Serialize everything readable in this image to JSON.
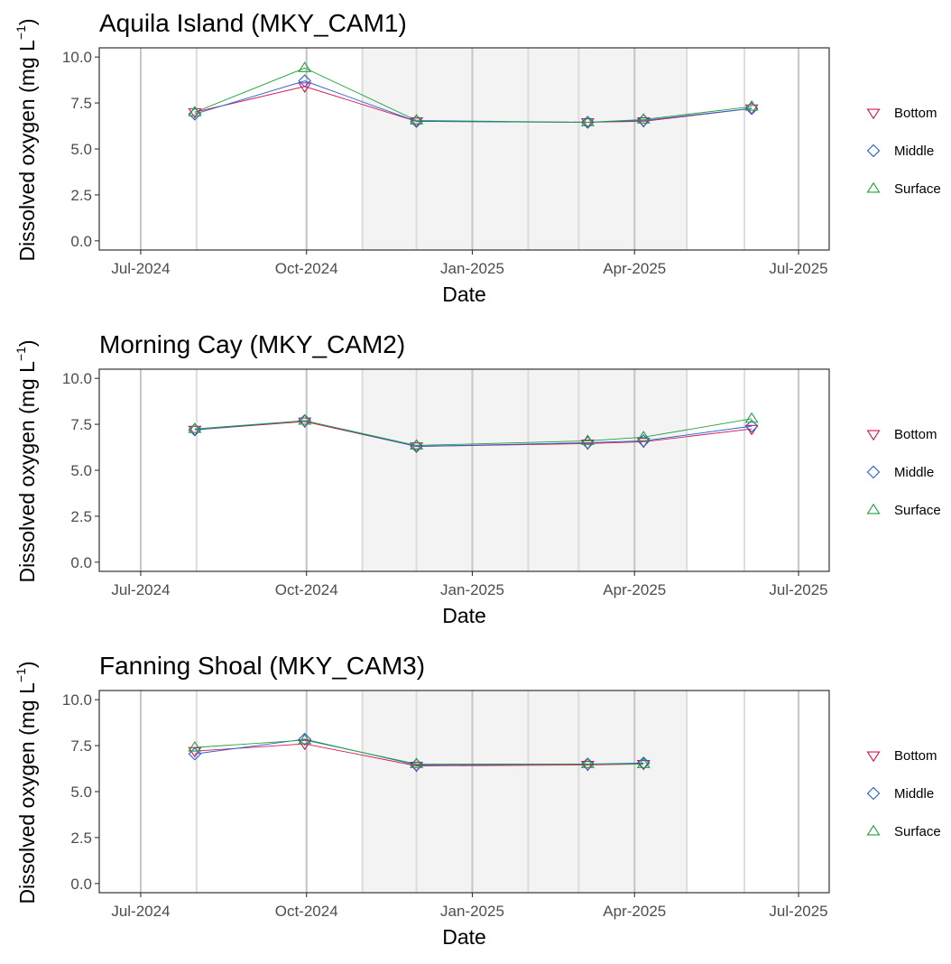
{
  "colors": {
    "Bottom": "#d6154f",
    "Middle": "#1f5fd6",
    "Surface": "#22a23a",
    "shade": "#f3f3f3",
    "vline": "#dcdcdc",
    "vline_major": "#c6c6c6"
  },
  "legend": {
    "items": [
      {
        "label": "Bottom",
        "marker": "triangle-down"
      },
      {
        "label": "Middle",
        "marker": "diamond"
      },
      {
        "label": "Surface",
        "marker": "triangle-up"
      }
    ]
  },
  "chart_data": [
    {
      "type": "line",
      "title": "Aquila Island (MKY_CAM1)",
      "xlabel": "Date",
      "ylabel_main": "Dissolved oxygen (mg L",
      "ylabel_sup": "−1",
      "ylabel_close": ")",
      "xlim": [
        "2024-06-08",
        "2025-07-18"
      ],
      "ylim": [
        -0.5,
        10.5
      ],
      "yticks": [
        "0.0",
        "2.5",
        "5.0",
        "7.5",
        "10.0"
      ],
      "ytick_values": [
        0,
        2.5,
        5,
        7.5,
        10
      ],
      "xticks": [
        {
          "label": "Jul-2024",
          "date": "2024-07-01"
        },
        {
          "label": "Oct-2024",
          "date": "2024-10-01"
        },
        {
          "label": "Jan-2025",
          "date": "2025-01-01"
        },
        {
          "label": "Apr-2025",
          "date": "2025-04-01"
        },
        {
          "label": "Jul-2025",
          "date": "2025-07-01"
        }
      ],
      "shaded_period": [
        "2024-11-01",
        "2025-04-30"
      ],
      "sampling_dates": [
        "2024-08-01",
        "2024-10-01",
        "2024-11-01",
        "2024-12-01",
        "2025-02-01",
        "2025-03-01",
        "2025-04-01",
        "2025-04-30",
        "2025-06-01"
      ],
      "x": [
        "2024-07-31",
        "2024-09-30",
        "2024-12-01",
        "2025-03-06",
        "2025-04-06",
        "2025-06-05"
      ],
      "series": [
        {
          "name": "Bottom",
          "values": [
            7.0,
            8.4,
            6.5,
            6.45,
            6.5,
            7.2
          ]
        },
        {
          "name": "Middle",
          "values": [
            6.9,
            8.7,
            6.5,
            6.45,
            6.55,
            7.2
          ]
        },
        {
          "name": "Surface",
          "values": [
            7.0,
            9.4,
            6.55,
            6.45,
            6.6,
            7.3
          ]
        }
      ]
    },
    {
      "type": "line",
      "title": "Morning Cay (MKY_CAM2)",
      "xlabel": "Date",
      "ylabel_main": "Dissolved oxygen (mg L",
      "ylabel_sup": "−1",
      "ylabel_close": ")",
      "xlim": [
        "2024-06-08",
        "2025-07-18"
      ],
      "ylim": [
        -0.5,
        10.5
      ],
      "yticks": [
        "0.0",
        "2.5",
        "5.0",
        "7.5",
        "10.0"
      ],
      "ytick_values": [
        0,
        2.5,
        5,
        7.5,
        10
      ],
      "xticks": [
        {
          "label": "Jul-2024",
          "date": "2024-07-01"
        },
        {
          "label": "Oct-2024",
          "date": "2024-10-01"
        },
        {
          "label": "Jan-2025",
          "date": "2025-01-01"
        },
        {
          "label": "Apr-2025",
          "date": "2025-04-01"
        },
        {
          "label": "Jul-2025",
          "date": "2025-07-01"
        }
      ],
      "shaded_period": [
        "2024-11-01",
        "2025-04-30"
      ],
      "sampling_dates": [
        "2024-08-01",
        "2024-10-01",
        "2024-11-01",
        "2024-12-01",
        "2025-02-01",
        "2025-03-01",
        "2025-04-01",
        "2025-04-30",
        "2025-06-01"
      ],
      "x": [
        "2024-07-31",
        "2024-09-30",
        "2024-12-01",
        "2025-03-06",
        "2025-04-06",
        "2025-06-05"
      ],
      "series": [
        {
          "name": "Bottom",
          "values": [
            7.2,
            7.65,
            6.3,
            6.45,
            6.55,
            7.25
          ]
        },
        {
          "name": "Middle",
          "values": [
            7.2,
            7.7,
            6.3,
            6.5,
            6.6,
            7.4
          ]
        },
        {
          "name": "Surface",
          "values": [
            7.25,
            7.7,
            6.35,
            6.6,
            6.8,
            7.8
          ]
        }
      ]
    },
    {
      "type": "line",
      "title": "Fanning Shoal (MKY_CAM3)",
      "xlabel": "Date",
      "ylabel_main": "Dissolved oxygen (mg L",
      "ylabel_sup": "−1",
      "ylabel_close": ")",
      "xlim": [
        "2024-06-08",
        "2025-07-18"
      ],
      "ylim": [
        -0.5,
        10.5
      ],
      "yticks": [
        "0.0",
        "2.5",
        "5.0",
        "7.5",
        "10.0"
      ],
      "ytick_values": [
        0,
        2.5,
        5,
        7.5,
        10
      ],
      "xticks": [
        {
          "label": "Jul-2024",
          "date": "2024-07-01"
        },
        {
          "label": "Oct-2024",
          "date": "2024-10-01"
        },
        {
          "label": "Jan-2025",
          "date": "2025-01-01"
        },
        {
          "label": "Apr-2025",
          "date": "2025-04-01"
        },
        {
          "label": "Jul-2025",
          "date": "2025-07-01"
        }
      ],
      "shaded_period": [
        "2024-11-01",
        "2025-04-30"
      ],
      "sampling_dates": [
        "2024-08-01",
        "2024-10-01",
        "2024-11-01",
        "2024-12-01",
        "2025-02-01",
        "2025-03-01",
        "2025-04-01",
        "2025-04-30",
        "2025-06-01"
      ],
      "x": [
        "2024-07-31",
        "2024-09-30",
        "2024-12-01",
        "2025-03-06",
        "2025-04-06"
      ],
      "series": [
        {
          "name": "Bottom",
          "values": [
            7.2,
            7.6,
            6.4,
            6.45,
            6.5
          ]
        },
        {
          "name": "Middle",
          "values": [
            7.05,
            7.85,
            6.45,
            6.5,
            6.55
          ]
        },
        {
          "name": "Surface",
          "values": [
            7.4,
            7.8,
            6.5,
            6.5,
            6.5
          ]
        }
      ]
    }
  ]
}
